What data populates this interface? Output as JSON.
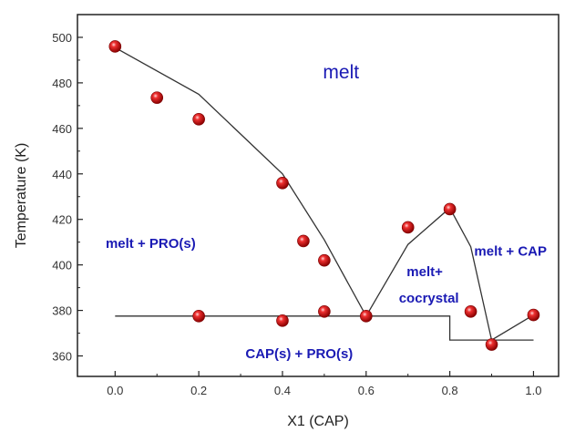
{
  "chart_data": {
    "type": "scatter",
    "title": "",
    "xlabel": "X1 (CAP)",
    "ylabel": "Temperature (K)",
    "xlim": [
      -0.09,
      1.06
    ],
    "ylim": [
      351,
      510
    ],
    "x_ticks": [
      0.0,
      0.2,
      0.4,
      0.6,
      0.8,
      1.0
    ],
    "x_tick_labels": [
      "0.0",
      "0.2",
      "0.4",
      "0.6",
      "0.8",
      "1.0"
    ],
    "y_ticks": [
      360,
      380,
      400,
      420,
      440,
      460,
      480,
      500
    ],
    "y_tick_labels": [
      "360",
      "380",
      "400",
      "420",
      "440",
      "460",
      "480",
      "500"
    ],
    "grid": false,
    "legend": "none",
    "point_color": "#d01010",
    "line_color": "#333333",
    "label_color": "#1a1ab4",
    "series": [
      {
        "kind": "points",
        "points": [
          {
            "x": 0.0,
            "y": 496
          },
          {
            "x": 0.1,
            "y": 473.5
          },
          {
            "x": 0.2,
            "y": 464
          },
          {
            "x": 0.2,
            "y": 377.5
          },
          {
            "x": 0.4,
            "y": 436
          },
          {
            "x": 0.4,
            "y": 375.5
          },
          {
            "x": 0.45,
            "y": 410.5
          },
          {
            "x": 0.5,
            "y": 402
          },
          {
            "x": 0.5,
            "y": 379.5
          },
          {
            "x": 0.6,
            "y": 377.5
          },
          {
            "x": 0.7,
            "y": 416.5
          },
          {
            "x": 0.8,
            "y": 424.5
          },
          {
            "x": 0.85,
            "y": 379.5
          },
          {
            "x": 0.9,
            "y": 365
          },
          {
            "x": 1.0,
            "y": 378
          }
        ]
      },
      {
        "kind": "line",
        "points": [
          {
            "x": 0.0,
            "y": 495.5
          },
          {
            "x": 0.2,
            "y": 475
          },
          {
            "x": 0.4,
            "y": 440
          },
          {
            "x": 0.5,
            "y": 411
          },
          {
            "x": 0.6,
            "y": 377.5
          },
          {
            "x": 0.7,
            "y": 409
          },
          {
            "x": 0.8,
            "y": 425
          },
          {
            "x": 0.85,
            "y": 408
          },
          {
            "x": 0.9,
            "y": 367
          },
          {
            "x": 1.0,
            "y": 378
          }
        ]
      },
      {
        "kind": "line",
        "points": [
          {
            "x": 0.0,
            "y": 377.5
          },
          {
            "x": 0.8,
            "y": 377.5
          },
          {
            "x": 0.8,
            "y": 367
          },
          {
            "x": 1.0,
            "y": 367
          }
        ]
      }
    ],
    "annotations": [
      {
        "text": "melt",
        "x": 0.54,
        "y": 482,
        "size": "large"
      },
      {
        "text": "melt + PRO(s)",
        "x": 0.085,
        "y": 407.5,
        "size": "normal"
      },
      {
        "text": "melt + CAP",
        "x": 0.945,
        "y": 404,
        "size": "normal"
      },
      {
        "text": "melt+",
        "x": 0.74,
        "y": 395,
        "size": "normal"
      },
      {
        "text": "cocrystal",
        "x": 0.75,
        "y": 383.5,
        "size": "normal"
      },
      {
        "text": "CAP(s) + PRO(s)",
        "x": 0.44,
        "y": 359,
        "size": "normal"
      }
    ]
  }
}
